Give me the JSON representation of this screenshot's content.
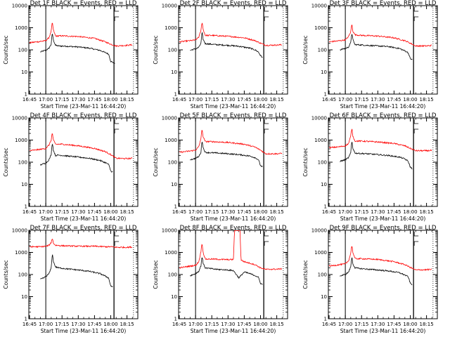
{
  "figure": {
    "time_start": "16:45",
    "start_time_label": "Start Time (23-Mar-11 16:44:20)"
  },
  "chart_data": [
    {
      "type": "line",
      "title": "Det 1F BLACK = Events, RED = LLD",
      "xlabel": "Start Time (23-Mar-11 16:44:20)",
      "ylabel": "Counts/sec",
      "y_scale": "log",
      "ylim": [
        1,
        10000
      ],
      "x_ticks": [
        "16:45",
        "17:00",
        "17:15",
        "17:30",
        "17:45",
        "18:00",
        "18:15"
      ],
      "y_ticks": [
        "1",
        "10",
        "100",
        "1000",
        "10000"
      ],
      "series": [
        {
          "name": "Events",
          "color": "#000000",
          "x": [
            "16:55",
            "16:58",
            "17:00",
            "17:03",
            "17:05",
            "17:06",
            "17:07",
            "17:09",
            "17:12",
            "17:20",
            "17:30",
            "17:40",
            "17:50",
            "17:55",
            "17:58",
            "18:00",
            "18:02",
            "18:04"
          ],
          "values": [
            80,
            90,
            95,
            120,
            180,
            600,
            280,
            160,
            150,
            145,
            135,
            120,
            95,
            75,
            65,
            30,
            27,
            25
          ]
        },
        {
          "name": "LLD",
          "color": "#ff0000",
          "x": [
            "16:45",
            "16:55",
            "17:00",
            "17:03",
            "17:05",
            "17:06",
            "17:07",
            "17:09",
            "17:15",
            "17:30",
            "17:45",
            "17:55",
            "18:00",
            "18:05",
            "18:15",
            "18:20"
          ],
          "values": [
            210,
            240,
            260,
            360,
            700,
            1800,
            800,
            420,
            430,
            400,
            330,
            230,
            180,
            150,
            160,
            170
          ]
        }
      ],
      "vlines": [
        "17:00",
        "18:03"
      ]
    },
    {
      "type": "line",
      "title": "Det 2F BLACK = Events, RED = LLD",
      "xlabel": "Start Time (23-Mar-11 16:44:20)",
      "ylabel": "Counts/sec",
      "y_scale": "log",
      "ylim": [
        1,
        10000
      ],
      "x_ticks": [
        "16:45",
        "17:00",
        "17:15",
        "17:30",
        "17:45",
        "18:00",
        "18:15"
      ],
      "y_ticks": [
        "1",
        "10",
        "100",
        "1000",
        "10000"
      ],
      "series": [
        {
          "name": "Events",
          "color": "#000000",
          "x": [
            "16:55",
            "16:58",
            "17:00",
            "17:03",
            "17:05",
            "17:06",
            "17:07",
            "17:09",
            "17:12",
            "17:20",
            "17:30",
            "17:40",
            "17:50",
            "17:55",
            "17:58",
            "18:00",
            "18:02"
          ],
          "values": [
            95,
            105,
            110,
            130,
            200,
            650,
            300,
            190,
            185,
            170,
            160,
            145,
            120,
            100,
            80,
            55,
            45
          ]
        },
        {
          "name": "LLD",
          "color": "#ff0000",
          "x": [
            "16:45",
            "16:55",
            "17:00",
            "17:03",
            "17:05",
            "17:06",
            "17:07",
            "17:09",
            "17:15",
            "17:30",
            "17:45",
            "17:55",
            "18:00",
            "18:05",
            "18:15",
            "18:20"
          ],
          "values": [
            230,
            260,
            280,
            380,
            750,
            1900,
            850,
            450,
            450,
            410,
            350,
            260,
            200,
            160,
            165,
            170
          ]
        }
      ],
      "vlines": [
        "17:00",
        "18:03"
      ]
    },
    {
      "type": "line",
      "title": "Det 3F BLACK = Events, RED = LLD",
      "xlabel": "Start Time (23-Mar-11 16:44:20)",
      "ylabel": "Counts/sec",
      "y_scale": "log",
      "ylim": [
        1,
        10000
      ],
      "x_ticks": [
        "16:45",
        "17:00",
        "17:15",
        "17:30",
        "17:45",
        "18:00",
        "18:15"
      ],
      "y_ticks": [
        "1",
        "10",
        "100",
        "1000",
        "10000"
      ],
      "series": [
        {
          "name": "Events",
          "color": "#000000",
          "x": [
            "16:55",
            "16:58",
            "17:00",
            "17:03",
            "17:05",
            "17:06",
            "17:07",
            "17:09",
            "17:12",
            "17:20",
            "17:30",
            "17:40",
            "17:50",
            "17:55",
            "17:58",
            "18:00",
            "18:02"
          ],
          "values": [
            100,
            110,
            115,
            135,
            210,
            600,
            290,
            170,
            170,
            160,
            150,
            140,
            115,
            90,
            75,
            40,
            35
          ]
        },
        {
          "name": "LLD",
          "color": "#ff0000",
          "x": [
            "16:45",
            "16:55",
            "17:00",
            "17:03",
            "17:05",
            "17:06",
            "17:07",
            "17:09",
            "17:15",
            "17:30",
            "17:45",
            "17:55",
            "18:00",
            "18:05",
            "18:15",
            "18:20"
          ],
          "values": [
            230,
            260,
            280,
            400,
            650,
            1500,
            700,
            480,
            450,
            420,
            350,
            260,
            200,
            150,
            150,
            160
          ]
        }
      ],
      "vlines": [
        "17:00",
        "18:03"
      ]
    },
    {
      "type": "line",
      "title": "Det 4F BLACK = Events, RED = LLD",
      "xlabel": "Start Time (23-Mar-11 16:44:20)",
      "ylabel": "Counts/sec",
      "y_scale": "log",
      "ylim": [
        1,
        10000
      ],
      "x_ticks": [
        "16:45",
        "17:00",
        "17:15",
        "17:30",
        "17:45",
        "18:00",
        "18:15"
      ],
      "y_ticks": [
        "1",
        "10",
        "100",
        "1000",
        "10000"
      ],
      "series": [
        {
          "name": "Events",
          "color": "#000000",
          "x": [
            "16:55",
            "16:58",
            "17:00",
            "17:03",
            "17:05",
            "17:06",
            "17:07",
            "17:09",
            "17:12",
            "17:20",
            "17:30",
            "17:40",
            "17:50",
            "17:55",
            "17:58",
            "18:00",
            "18:02"
          ],
          "values": [
            75,
            85,
            90,
            130,
            220,
            800,
            350,
            200,
            210,
            190,
            170,
            150,
            120,
            95,
            80,
            40,
            35
          ]
        },
        {
          "name": "LLD",
          "color": "#ff0000",
          "x": [
            "16:45",
            "16:55",
            "17:00",
            "17:03",
            "17:05",
            "17:06",
            "17:07",
            "17:09",
            "17:15",
            "17:30",
            "17:45",
            "17:55",
            "18:00",
            "18:05",
            "18:15",
            "18:20"
          ],
          "values": [
            330,
            380,
            420,
            600,
            1000,
            2200,
            1000,
            650,
            650,
            550,
            420,
            300,
            220,
            150,
            145,
            150
          ]
        }
      ],
      "vlines": [
        "17:00",
        "18:03"
      ]
    },
    {
      "type": "line",
      "title": "Det 5F BLACK = Events, RED = LLD",
      "xlabel": "Start Time (23-Mar-11 16:44:20)",
      "ylabel": "Counts/sec",
      "y_scale": "log",
      "ylim": [
        1,
        10000
      ],
      "x_ticks": [
        "16:45",
        "17:00",
        "17:15",
        "17:30",
        "17:45",
        "18:00",
        "18:15"
      ],
      "y_ticks": [
        "1",
        "10",
        "100",
        "1000",
        "10000"
      ],
      "series": [
        {
          "name": "Events",
          "color": "#000000",
          "x": [
            "16:55",
            "16:58",
            "17:00",
            "17:03",
            "17:05",
            "17:06",
            "17:07",
            "17:09",
            "17:12",
            "17:20",
            "17:30",
            "17:40",
            "17:50",
            "17:55",
            "17:58",
            "18:00",
            "18:02"
          ],
          "values": [
            130,
            140,
            150,
            180,
            280,
            1000,
            450,
            280,
            270,
            260,
            240,
            220,
            190,
            160,
            130,
            70,
            60
          ]
        },
        {
          "name": "LLD",
          "color": "#ff0000",
          "x": [
            "16:45",
            "16:55",
            "17:00",
            "17:03",
            "17:05",
            "17:06",
            "17:07",
            "17:09",
            "17:15",
            "17:30",
            "17:45",
            "17:55",
            "18:00",
            "18:05",
            "18:15",
            "18:20"
          ],
          "values": [
            280,
            320,
            350,
            500,
            1200,
            3200,
            1400,
            850,
            850,
            780,
            650,
            480,
            350,
            240,
            240,
            250
          ]
        }
      ],
      "vlines": [
        "17:00",
        "18:03"
      ]
    },
    {
      "type": "line",
      "title": "Det 6F BLACK = Events, RED = LLD",
      "xlabel": "Start Time (23-Mar-11 16:44:20)",
      "ylabel": "Counts/sec",
      "y_scale": "log",
      "ylim": [
        1,
        10000
      ],
      "x_ticks": [
        "16:45",
        "17:00",
        "17:15",
        "17:30",
        "17:45",
        "18:00",
        "18:15"
      ],
      "y_ticks": [
        "1",
        "10",
        "100",
        "1000",
        "10000"
      ],
      "series": [
        {
          "name": "Events",
          "color": "#000000",
          "x": [
            "16:55",
            "16:58",
            "17:00",
            "17:03",
            "17:05",
            "17:06",
            "17:07",
            "17:09",
            "17:12",
            "17:20",
            "17:30",
            "17:40",
            "17:50",
            "17:55",
            "17:58",
            "18:00",
            "18:02"
          ],
          "values": [
            110,
            120,
            130,
            160,
            260,
            950,
            420,
            260,
            250,
            240,
            220,
            200,
            170,
            140,
            110,
            60,
            50
          ]
        },
        {
          "name": "LLD",
          "color": "#ff0000",
          "x": [
            "16:45",
            "16:55",
            "17:00",
            "17:03",
            "17:05",
            "17:06",
            "17:07",
            "17:09",
            "17:15",
            "17:30",
            "17:45",
            "17:55",
            "18:00",
            "18:05",
            "18:15",
            "18:20"
          ],
          "values": [
            450,
            500,
            550,
            700,
            1500,
            3500,
            1500,
            900,
            900,
            820,
            700,
            550,
            420,
            330,
            330,
            340
          ]
        }
      ],
      "vlines": [
        "17:00",
        "18:03"
      ]
    },
    {
      "type": "line",
      "title": "Det 7F BLACK = Events, RED = LLD",
      "xlabel": "Start Time (23-Mar-11 16:44:20)",
      "ylabel": "Counts/sec",
      "y_scale": "log",
      "ylim": [
        1,
        10000
      ],
      "x_ticks": [
        "16:45",
        "17:00",
        "17:15",
        "17:30",
        "17:45",
        "18:00",
        "18:15"
      ],
      "y_ticks": [
        "1",
        "10",
        "100",
        "1000",
        "10000"
      ],
      "series": [
        {
          "name": "Events",
          "color": "#000000",
          "x": [
            "16:55",
            "16:58",
            "17:00",
            "17:03",
            "17:05",
            "17:06",
            "17:07",
            "17:09",
            "17:12",
            "17:20",
            "17:30",
            "17:40",
            "17:50",
            "17:55",
            "17:58",
            "18:00",
            "18:02"
          ],
          "values": [
            60,
            70,
            80,
            110,
            200,
            900,
            400,
            220,
            200,
            180,
            160,
            140,
            110,
            85,
            70,
            30,
            28
          ]
        },
        {
          "name": "LLD",
          "color": "#ff0000",
          "x": [
            "16:45",
            "16:55",
            "17:00",
            "17:03",
            "17:05",
            "17:06",
            "17:07",
            "17:09",
            "17:15",
            "17:30",
            "17:45",
            "17:55",
            "18:00",
            "18:05",
            "18:15",
            "18:20"
          ],
          "values": [
            1800,
            1800,
            1900,
            2100,
            2800,
            4500,
            2600,
            2100,
            2000,
            1900,
            1900,
            1800,
            1800,
            1700,
            1700,
            1750
          ]
        }
      ],
      "vlines": [
        "17:00",
        "18:03"
      ]
    },
    {
      "type": "line",
      "title": "Det 8F BLACK = Events, RED = LLD",
      "xlabel": "Start Time (23-Mar-11 16:44:20)",
      "ylabel": "Counts/sec",
      "y_scale": "log",
      "ylim": [
        1,
        10000
      ],
      "x_ticks": [
        "16:45",
        "17:00",
        "17:15",
        "17:30",
        "17:45",
        "18:00",
        "18:15"
      ],
      "y_ticks": [
        "1",
        "10",
        "100",
        "1000",
        "10000"
      ],
      "series": [
        {
          "name": "Events",
          "color": "#000000",
          "x": [
            "16:55",
            "16:58",
            "17:00",
            "17:03",
            "17:05",
            "17:06",
            "17:07",
            "17:09",
            "17:12",
            "17:20",
            "17:30",
            "17:35",
            "17:40",
            "17:45",
            "17:50",
            "17:55",
            "17:58",
            "18:00",
            "18:02"
          ],
          "values": [
            90,
            100,
            110,
            140,
            250,
            700,
            320,
            200,
            190,
            170,
            160,
            150,
            70,
            130,
            110,
            90,
            75,
            40,
            35
          ]
        },
        {
          "name": "LLD",
          "color": "#ff0000",
          "x": [
            "16:45",
            "16:55",
            "17:00",
            "17:03",
            "17:05",
            "17:06",
            "17:07",
            "17:09",
            "17:15",
            "17:30",
            "17:35",
            "17:36",
            "17:41",
            "17:42",
            "17:45",
            "17:55",
            "18:00",
            "18:05",
            "18:15",
            "18:20"
          ],
          "values": [
            200,
            240,
            260,
            380,
            1100,
            2800,
            1000,
            500,
            500,
            470,
            480,
            10000,
            10000,
            450,
            380,
            280,
            200,
            170,
            175,
            180
          ]
        }
      ],
      "vlines": [
        "17:00",
        "18:03"
      ]
    },
    {
      "type": "line",
      "title": "Det 9F BLACK = Events, RED = LLD",
      "xlabel": "Start Time (23-Mar-11 16:44:20)",
      "ylabel": "Counts/sec",
      "y_scale": "log",
      "ylim": [
        1,
        10000
      ],
      "x_ticks": [
        "16:45",
        "17:00",
        "17:15",
        "17:30",
        "17:45",
        "18:00",
        "18:15"
      ],
      "y_ticks": [
        "1",
        "10",
        "100",
        "1000",
        "10000"
      ],
      "series": [
        {
          "name": "Events",
          "color": "#000000",
          "x": [
            "16:55",
            "16:58",
            "17:00",
            "17:03",
            "17:05",
            "17:06",
            "17:07",
            "17:09",
            "17:12",
            "17:20",
            "17:30",
            "17:40",
            "17:50",
            "17:55",
            "17:58",
            "18:00",
            "18:02"
          ],
          "values": [
            85,
            95,
            100,
            130,
            220,
            650,
            300,
            200,
            190,
            175,
            160,
            145,
            120,
            95,
            80,
            40,
            35
          ]
        },
        {
          "name": "LLD",
          "color": "#ff0000",
          "x": [
            "16:45",
            "16:55",
            "17:00",
            "17:03",
            "17:05",
            "17:06",
            "17:07",
            "17:09",
            "17:15",
            "17:30",
            "17:45",
            "17:55",
            "18:00",
            "18:05",
            "18:15",
            "18:20"
          ],
          "values": [
            240,
            280,
            300,
            420,
            900,
            2200,
            1000,
            520,
            520,
            480,
            380,
            280,
            210,
            160,
            165,
            170
          ]
        }
      ],
      "vlines": [
        "17:00",
        "18:03"
      ]
    }
  ]
}
